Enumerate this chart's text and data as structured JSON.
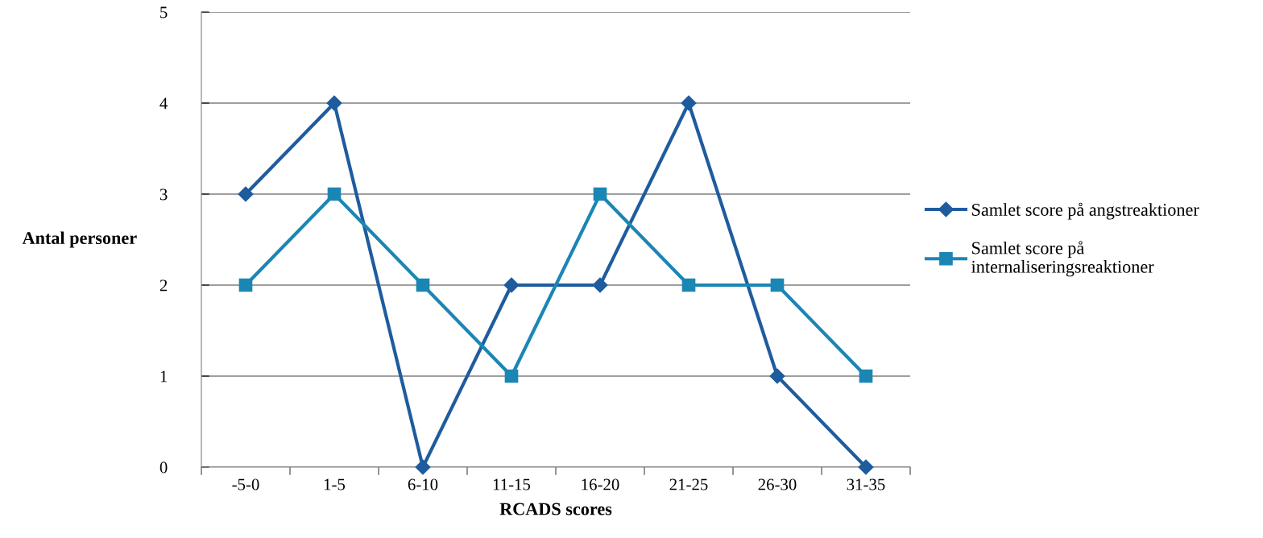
{
  "chart_data": {
    "type": "line",
    "xlabel": "RCADS scores",
    "ylabel": "Antal personer",
    "categories": [
      "-5-0",
      "1-5",
      "6-10",
      "11-15",
      "16-20",
      "21-25",
      "26-30",
      "31-35"
    ],
    "series": [
      {
        "name": "Samlet score på angstreaktioner",
        "color": "#1f5c9e",
        "values": [
          3,
          4,
          0,
          2,
          2,
          4,
          1,
          0
        ],
        "marker": "diamond"
      },
      {
        "name": "Samlet score på internaliseringsreaktioner",
        "color": "#1b86b4",
        "values": [
          2,
          3,
          2,
          1,
          3,
          2,
          2,
          1
        ],
        "marker": "square"
      }
    ],
    "ylim": [
      0,
      5
    ],
    "yticks": [
      0,
      1,
      2,
      3,
      4,
      5
    ],
    "grid": "y",
    "legend": "right",
    "line_style": "solid"
  }
}
